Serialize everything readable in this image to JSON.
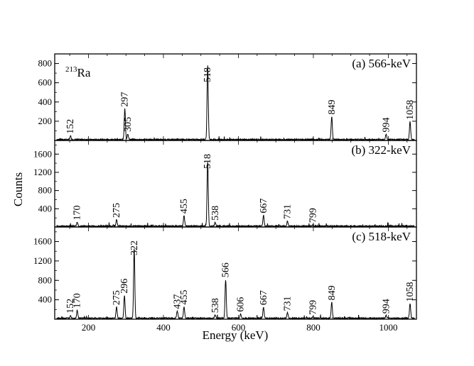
{
  "chart_data": {
    "type": "line",
    "xlabel": "Energy (keV)",
    "ylabel": "Counts",
    "xlim": [
      110,
      1075
    ],
    "xticks": [
      200,
      400,
      600,
      800,
      1000
    ],
    "isotope": {
      "mass": "213",
      "symbol": "Ra"
    },
    "panels": [
      {
        "title": "(a) 566-keV",
        "ylim": [
          0,
          900
        ],
        "yticks": [
          200,
          400,
          600,
          800
        ],
        "baseline": 12,
        "peaks": [
          {
            "x": 152,
            "y": 38,
            "label": "152"
          },
          {
            "x": 297,
            "y": 320,
            "label": "297"
          },
          {
            "x": 305,
            "y": 60,
            "label": "305"
          },
          {
            "x": 518,
            "y": 780,
            "label": "518"
          },
          {
            "x": 849,
            "y": 240,
            "label": "849"
          },
          {
            "x": 994,
            "y": 55,
            "label": "994"
          },
          {
            "x": 1058,
            "y": 185,
            "label": "1058"
          }
        ]
      },
      {
        "title": "(b) 322-keV",
        "ylim": [
          0,
          1900
        ],
        "yticks": [
          400,
          800,
          1200,
          1600
        ],
        "baseline": 25,
        "peaks": [
          {
            "x": 170,
            "y": 85,
            "label": "170"
          },
          {
            "x": 275,
            "y": 140,
            "label": "275"
          },
          {
            "x": 455,
            "y": 230,
            "label": "455"
          },
          {
            "x": 518,
            "y": 1430,
            "label": "518"
          },
          {
            "x": 538,
            "y": 80,
            "label": "538"
          },
          {
            "x": 667,
            "y": 240,
            "label": "667"
          },
          {
            "x": 731,
            "y": 110,
            "label": "731"
          },
          {
            "x": 799,
            "y": 30,
            "label": "799"
          }
        ]
      },
      {
        "title": "(c) 518-keV",
        "ylim": [
          0,
          1900
        ],
        "yticks": [
          400,
          800,
          1200,
          1600
        ],
        "baseline": 25,
        "peaks": [
          {
            "x": 152,
            "y": 60,
            "label": "152"
          },
          {
            "x": 170,
            "y": 170,
            "label": "170"
          },
          {
            "x": 275,
            "y": 230,
            "label": "275"
          },
          {
            "x": 296,
            "y": 470,
            "label": "296"
          },
          {
            "x": 322,
            "y": 1450,
            "label": "322"
          },
          {
            "x": 437,
            "y": 150,
            "label": "437"
          },
          {
            "x": 455,
            "y": 240,
            "label": "455"
          },
          {
            "x": 538,
            "y": 70,
            "label": "538"
          },
          {
            "x": 566,
            "y": 800,
            "label": "566"
          },
          {
            "x": 606,
            "y": 90,
            "label": "606"
          },
          {
            "x": 667,
            "y": 230,
            "label": "667"
          },
          {
            "x": 731,
            "y": 110,
            "label": "731"
          },
          {
            "x": 799,
            "y": 30,
            "label": "799"
          },
          {
            "x": 849,
            "y": 330,
            "label": "849"
          },
          {
            "x": 994,
            "y": 55,
            "label": "994"
          },
          {
            "x": 1058,
            "y": 300,
            "label": "1058"
          }
        ]
      }
    ]
  }
}
